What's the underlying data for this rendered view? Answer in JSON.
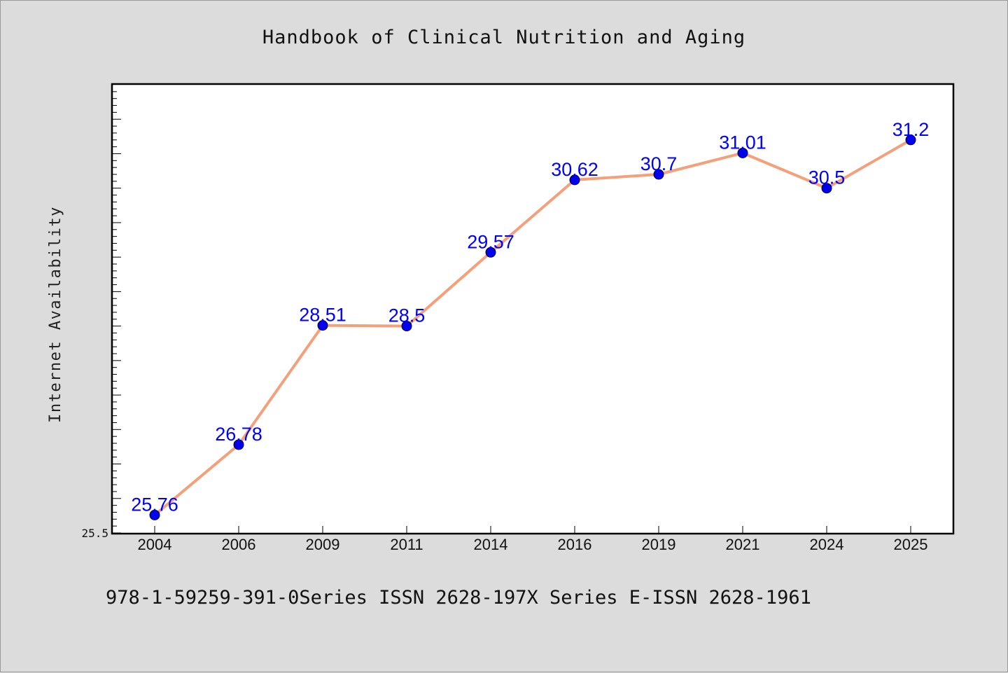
{
  "chart_data": {
    "type": "line",
    "title": "Handbook of Clinical Nutrition and Aging",
    "ylabel": "Internet Availability",
    "xlabel": "",
    "categories": [
      "2004",
      "2006",
      "2009",
      "2011",
      "2014",
      "2016",
      "2019",
      "2021",
      "2024",
      "2025"
    ],
    "series": [
      {
        "values": [
          25.76,
          26.78,
          28.51,
          28.5,
          29.57,
          30.62,
          30.7,
          31.01,
          30.5,
          31.2
        ],
        "labels": [
          "25.76",
          "26.78",
          "28.51",
          "28.5",
          "29.57",
          "30.62",
          "30.7",
          "31.01",
          "30.5",
          "31.2"
        ]
      }
    ],
    "ylim": [
      25.5,
      32.0
    ],
    "yticks_labeled": [
      "25.5"
    ],
    "grid": false,
    "line_color": "#f4a07a",
    "marker_color": "#0000ee",
    "label_color": "#0000ff"
  },
  "footer": "978-1-59259-391-0Series ISSN 2628-197X Series E-ISSN 2628-1961"
}
